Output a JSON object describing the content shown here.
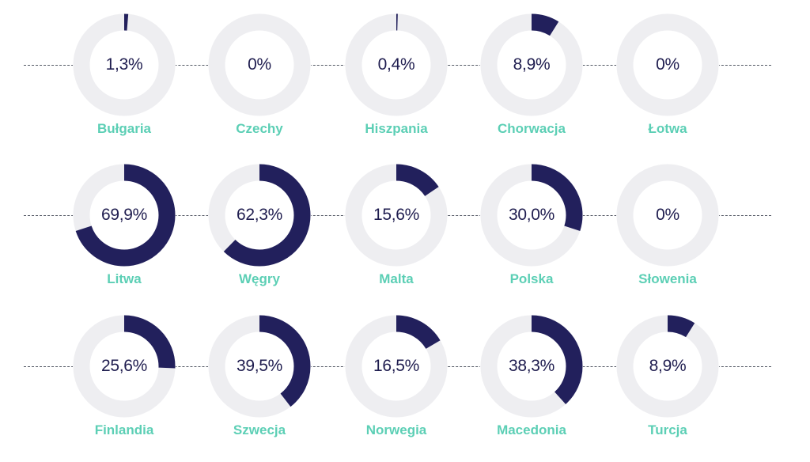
{
  "colors": {
    "ring_track": "#eeeef1",
    "ring_fill": "#22205c",
    "value_text": "#1f1d4f",
    "label_text": "#5ccfb5"
  },
  "chart_data": {
    "type": "donut-grid",
    "unit": "%",
    "rows": [
      [
        {
          "label": "Bułgaria",
          "value": 1.3,
          "display": "1,3%"
        },
        {
          "label": "Czechy",
          "value": 0,
          "display": "0%"
        },
        {
          "label": "Hiszpania",
          "value": 0.4,
          "display": "0,4%"
        },
        {
          "label": "Chorwacja",
          "value": 8.9,
          "display": "8,9%"
        },
        {
          "label": "Łotwa",
          "value": 0,
          "display": "0%"
        }
      ],
      [
        {
          "label": "Litwa",
          "value": 69.9,
          "display": "69,9%"
        },
        {
          "label": "Węgry",
          "value": 62.3,
          "display": "62,3%"
        },
        {
          "label": "Malta",
          "value": 15.6,
          "display": "15,6%"
        },
        {
          "label": "Polska",
          "value": 30.0,
          "display": "30,0%"
        },
        {
          "label": "Słowenia",
          "value": 0,
          "display": "0%"
        }
      ],
      [
        {
          "label": "Finlandia",
          "value": 25.6,
          "display": "25,6%"
        },
        {
          "label": "Szwecja",
          "value": 39.5,
          "display": "39,5%"
        },
        {
          "label": "Norwegia",
          "value": 16.5,
          "display": "16,5%"
        },
        {
          "label": "Macedonia",
          "value": 38.3,
          "display": "38,3%"
        },
        {
          "label": "Turcja",
          "value": 8.9,
          "display": "8,9%"
        }
      ]
    ]
  }
}
